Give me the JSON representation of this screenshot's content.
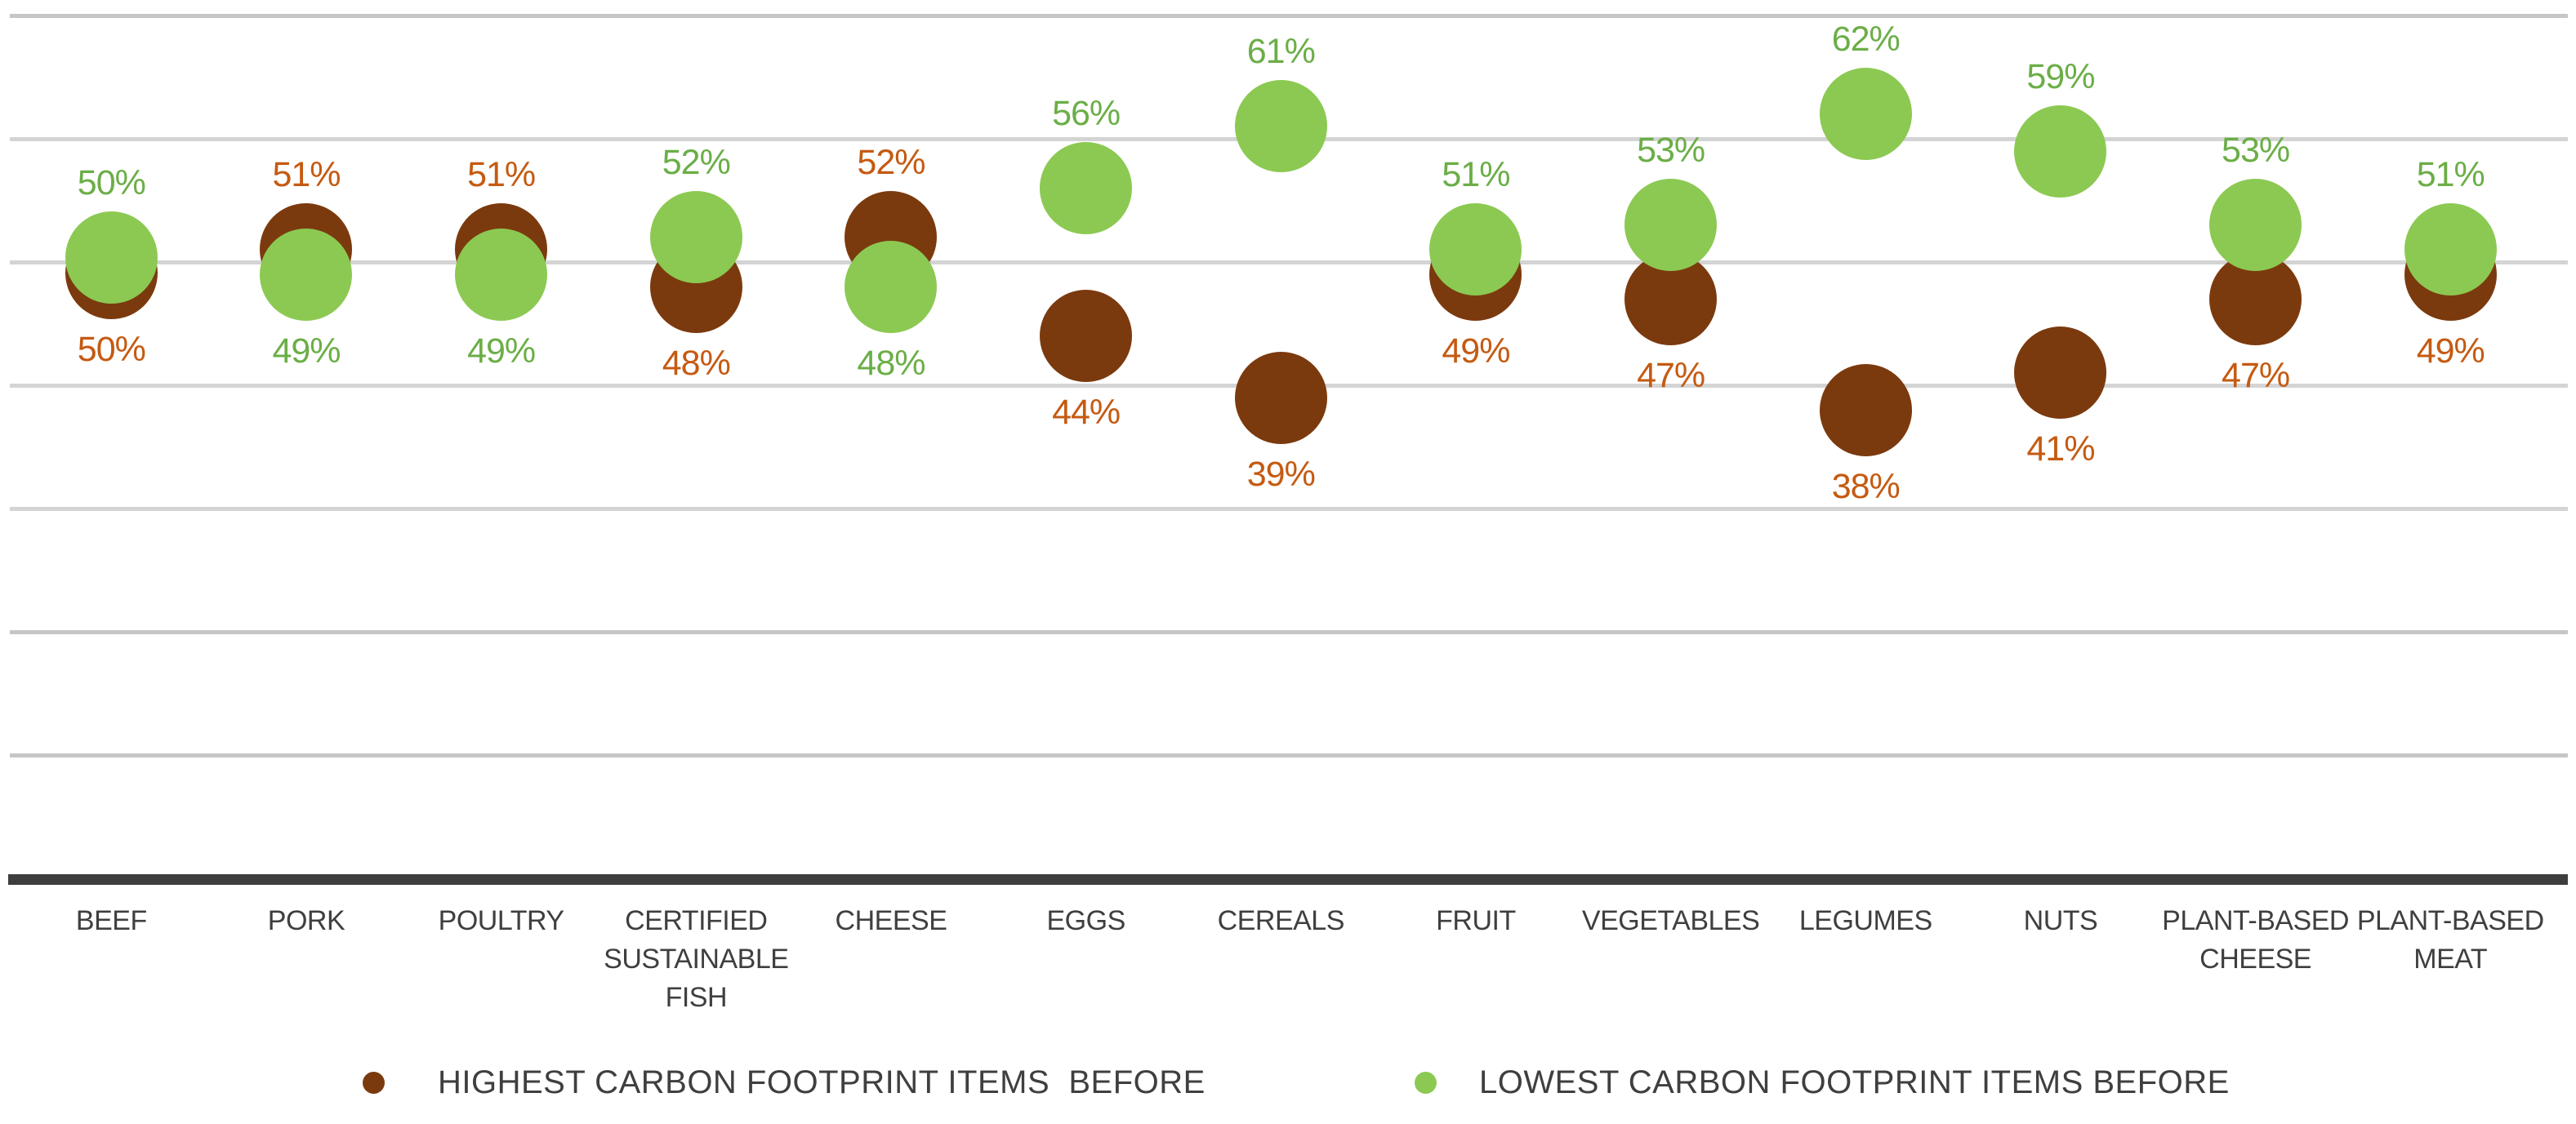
{
  "chart_data": {
    "type": "scatter",
    "title": "",
    "xlabel": "",
    "ylabel": "",
    "ylim": [
      0,
      70
    ],
    "gridline_step_pct": 10,
    "grid": true,
    "legend_position": "bottom",
    "categories": [
      "BEEF",
      "PORK",
      "POULTRY",
      "CERTIFIED\nSUSTAINABLE\nFISH",
      "CHEESE",
      "EGGS",
      "CEREALS",
      "FRUIT",
      "VEGETABLES",
      "LEGUMES",
      "NUTS",
      "PLANT-BASED\nCHEESE",
      "PLANT-BASED\nMEAT"
    ],
    "series": [
      {
        "name": "HIGHEST CARBON FOOTPRINT ITEMS  BEFORE",
        "marker_color": "#7b3a0e",
        "label_color": "#c55a11",
        "values": [
          50,
          51,
          51,
          48,
          52,
          44,
          39,
          49,
          47,
          38,
          41,
          47,
          49
        ]
      },
      {
        "name": "LOWEST CARBON FOOTPRINT ITEMS BEFORE",
        "marker_color": "#8cc952",
        "label_color": "#6bae47",
        "values": [
          50,
          49,
          49,
          52,
          48,
          56,
          61,
          51,
          53,
          62,
          59,
          53,
          51
        ]
      }
    ],
    "data_label_suffix": "%"
  },
  "colors": {
    "gridline": "#d4d4d4",
    "gridline_dark": "#c6c6c6",
    "axis_line": "#3e3e3e",
    "category_text": "#3f3f3f",
    "legend_text": "#3f3f3f"
  }
}
